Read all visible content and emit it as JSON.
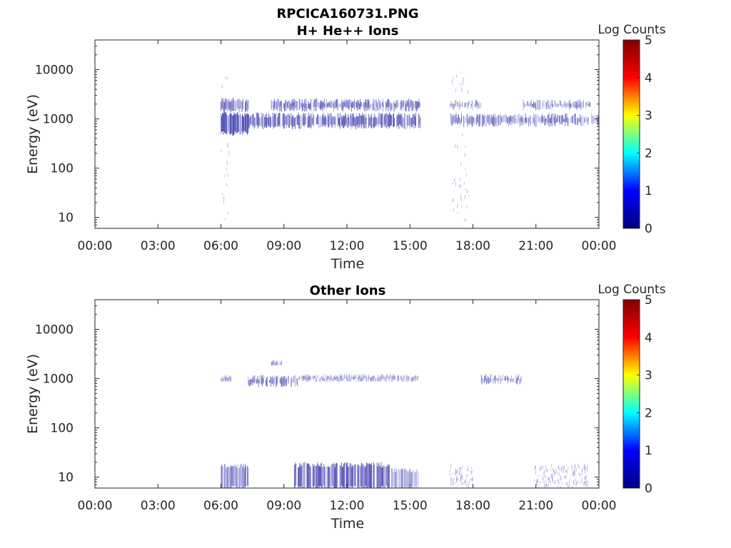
{
  "figure": {
    "title": "RPCICA160731.PNG"
  },
  "colors": {
    "data_dark": "#2a2aa6",
    "data_light": "#7a7ad0",
    "axis": "#262626",
    "colormap": [
      "#00007f",
      "#0000ff",
      "#00ffff",
      "#ffff00",
      "#ff0000",
      "#7f0000"
    ]
  },
  "chart_data": [
    {
      "type": "heatmap",
      "title": "H+ He++ Ions",
      "xlabel": "Time",
      "ylabel": "Energy (eV)",
      "yscale": "log",
      "ylim": [
        6,
        40000
      ],
      "xlim_hours": [
        0,
        24
      ],
      "x_ticks": [
        "00:00",
        "03:00",
        "06:00",
        "09:00",
        "12:00",
        "15:00",
        "18:00",
        "21:00",
        "00:00"
      ],
      "y_ticks": [
        "10",
        "100",
        "1000",
        "10000"
      ],
      "colorbar": {
        "label": "Log Counts",
        "range": [
          0,
          5
        ],
        "ticks": [
          "0",
          "1",
          "2",
          "3",
          "4",
          "5"
        ]
      },
      "bands": [
        {
          "t_start": 6.0,
          "t_end": 7.3,
          "e_low": 520,
          "e_high": 1250,
          "level": 0.9
        },
        {
          "t_start": 6.0,
          "t_end": 7.3,
          "e_low": 1500,
          "e_high": 2400,
          "level": 0.6
        },
        {
          "t_start": 7.3,
          "t_end": 15.5,
          "e_low": 700,
          "e_high": 1200,
          "level": 0.7
        },
        {
          "t_start": 8.4,
          "t_end": 15.5,
          "e_low": 1600,
          "e_high": 2300,
          "level": 0.6
        },
        {
          "t_start": 16.9,
          "t_end": 24.0,
          "e_low": 780,
          "e_high": 1150,
          "level": 0.5
        },
        {
          "t_start": 16.9,
          "t_end": 18.4,
          "e_low": 1700,
          "e_high": 2200,
          "level": 0.35
        },
        {
          "t_start": 20.4,
          "t_end": 23.6,
          "e_low": 1700,
          "e_high": 2200,
          "level": 0.45
        }
      ],
      "sparse": [
        {
          "t_start": 6.0,
          "t_end": 6.4,
          "e_low": 6,
          "e_high": 9500,
          "level": 0.2
        },
        {
          "t_start": 17.0,
          "t_end": 17.8,
          "e_low": 6,
          "e_high": 10000,
          "level": 0.2
        }
      ]
    },
    {
      "type": "heatmap",
      "title": "Other Ions",
      "xlabel": "Time",
      "ylabel": "Energy (eV)",
      "yscale": "log",
      "ylim": [
        6,
        40000
      ],
      "xlim_hours": [
        0,
        24
      ],
      "x_ticks": [
        "00:00",
        "03:00",
        "06:00",
        "09:00",
        "12:00",
        "15:00",
        "18:00",
        "21:00",
        "00:00"
      ],
      "y_ticks": [
        "10",
        "100",
        "1000",
        "10000"
      ],
      "colorbar": {
        "label": "Log Counts",
        "range": [
          0,
          5
        ],
        "ticks": [
          "0",
          "1",
          "2",
          "3",
          "4",
          "5"
        ]
      },
      "bands": [
        {
          "t_start": 6.0,
          "t_end": 7.3,
          "e_low": 6,
          "e_high": 17,
          "level": 0.45
        },
        {
          "t_start": 9.5,
          "t_end": 14.1,
          "e_low": 6,
          "e_high": 18,
          "level": 0.8
        },
        {
          "t_start": 14.1,
          "t_end": 15.5,
          "e_low": 6,
          "e_high": 14,
          "level": 0.3
        },
        {
          "t_start": 7.3,
          "t_end": 9.7,
          "e_low": 760,
          "e_high": 1050,
          "level": 0.55
        },
        {
          "t_start": 18.4,
          "t_end": 20.3,
          "e_low": 850,
          "e_high": 1100,
          "level": 0.4
        }
      ],
      "sparse": [
        {
          "t_start": 9.7,
          "t_end": 15.5,
          "e_low": 850,
          "e_high": 1050,
          "level": 0.2
        },
        {
          "t_start": 16.9,
          "t_end": 18.0,
          "e_low": 6,
          "e_high": 15,
          "level": 0.25
        },
        {
          "t_start": 20.9,
          "t_end": 23.5,
          "e_low": 6,
          "e_high": 16,
          "level": 0.25
        },
        {
          "t_start": 8.4,
          "t_end": 8.9,
          "e_low": 1800,
          "e_high": 2000,
          "level": 0.2
        },
        {
          "t_start": 6.0,
          "t_end": 6.5,
          "e_low": 850,
          "e_high": 1000,
          "level": 0.15
        }
      ]
    }
  ]
}
